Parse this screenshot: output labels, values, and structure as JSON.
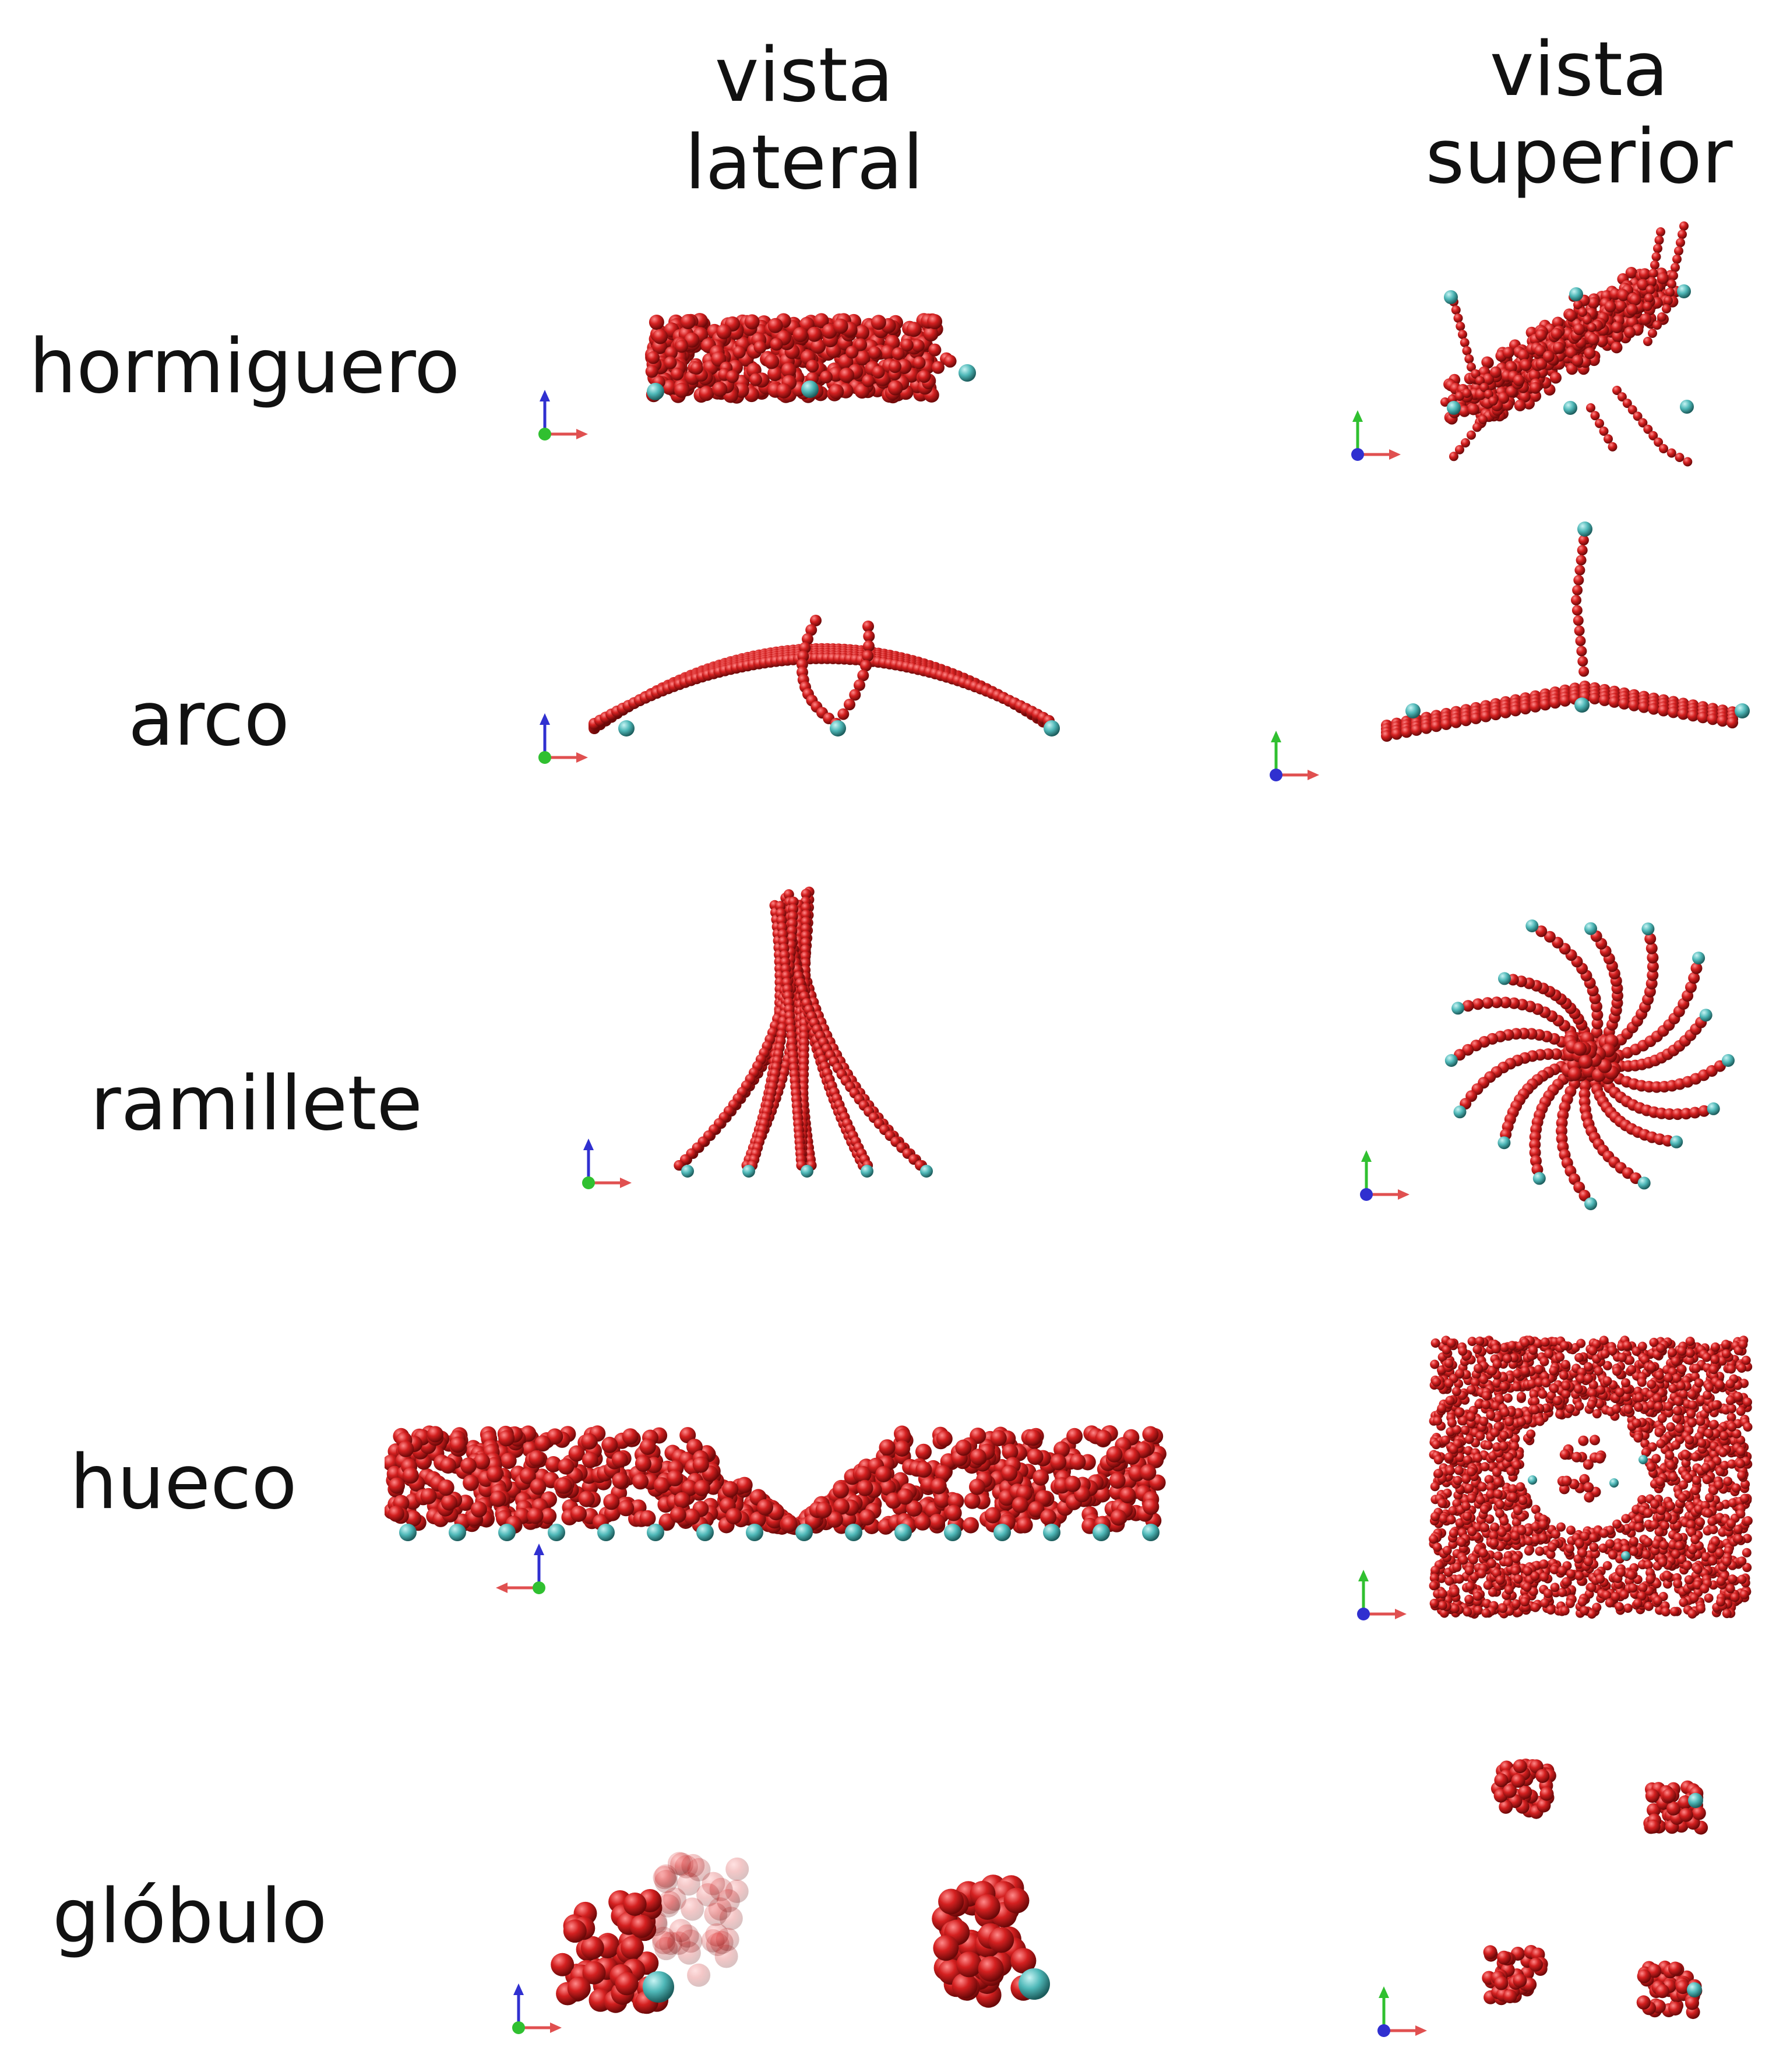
{
  "columns": {
    "lateral": {
      "line1": "vista",
      "line2": "lateral"
    },
    "superior": {
      "line1": "vista",
      "line2": "superior"
    }
  },
  "rows": [
    {
      "id": "hormiguero",
      "label": "hormiguero"
    },
    {
      "id": "arco",
      "label": "arco"
    },
    {
      "id": "ramillete",
      "label": "ramillete"
    },
    {
      "id": "hueco",
      "label": "hueco"
    },
    {
      "id": "globulo",
      "label": "glóbulo"
    }
  ],
  "colors": {
    "bead": "#d42020",
    "anchor": "#4fb8b8",
    "axis_x": "#e05050",
    "axis_y": "#30c030",
    "axis_z": "#3030d0"
  }
}
